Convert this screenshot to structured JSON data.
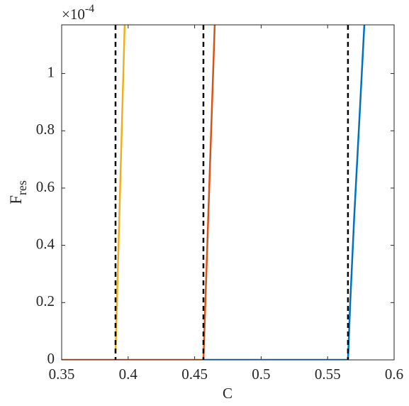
{
  "chart_data": {
    "type": "line",
    "xlabel": "C",
    "ylabel": {
      "main": "F",
      "sub": "res"
    },
    "yscale": {
      "base": "×10",
      "exponent": "-4"
    },
    "xlim": [
      0.35,
      0.6
    ],
    "xticks": [
      0.35,
      0.4,
      0.45,
      0.5,
      0.55,
      0.6
    ],
    "ylim": [
      0,
      1.17
    ],
    "yticks": [
      0,
      0.2,
      0.4,
      0.6,
      0.8,
      1
    ],
    "series": [
      {
        "color": "#EDB120",
        "x": [
          0.3905,
          0.3974
        ],
        "values": [
          0.025,
          1.17
        ]
      },
      {
        "color": "#D95319",
        "x": [
          0.35,
          0.4566,
          0.4651
        ],
        "values": [
          0,
          0,
          1.17
        ]
      },
      {
        "color": "#0072BD",
        "x": [
          0.4566,
          0.5653,
          0.567,
          0.57,
          0.574,
          0.5776
        ],
        "values": [
          0,
          0,
          0.2,
          0.5,
          0.85,
          1.17
        ]
      }
    ],
    "vlines": {
      "color": "#000000",
      "x": [
        0.3905,
        0.4566,
        0.5653
      ]
    }
  }
}
